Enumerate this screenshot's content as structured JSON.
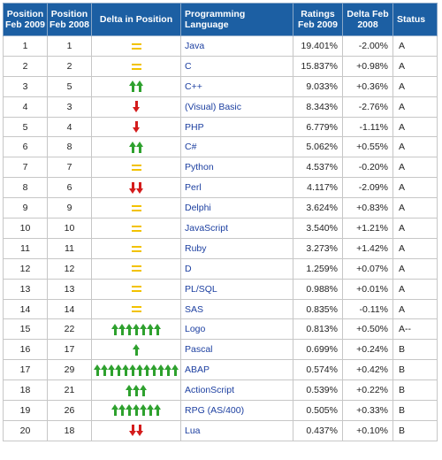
{
  "colors": {
    "header_bg": "#1c5fa3",
    "header_text": "#ffffff",
    "link": "#1c3fa0",
    "up_arrow": "#2ea12e",
    "down_arrow": "#d41c1c",
    "equal_sign": "#f2c200"
  },
  "header": {
    "pos_2009": "Position Feb 2009",
    "pos_2008": "Position Feb 2008",
    "delta_pos": "Delta in Position",
    "language": "Programming Language",
    "ratings": "Ratings Feb 2009",
    "delta_2008": "Delta Feb 2008",
    "status": "Status"
  },
  "rows": [
    {
      "p09": "1",
      "p08": "1",
      "delta": {
        "type": "equal",
        "count": 0
      },
      "lang": "Java",
      "rating": "19.401%",
      "change": "-2.00%",
      "status": "A"
    },
    {
      "p09": "2",
      "p08": "2",
      "delta": {
        "type": "equal",
        "count": 0
      },
      "lang": "C",
      "rating": "15.837%",
      "change": "+0.98%",
      "status": "A"
    },
    {
      "p09": "3",
      "p08": "5",
      "delta": {
        "type": "up",
        "count": 2
      },
      "lang": "C++",
      "rating": "9.033%",
      "change": "+0.36%",
      "status": "A"
    },
    {
      "p09": "4",
      "p08": "3",
      "delta": {
        "type": "down",
        "count": 1
      },
      "lang": "(Visual) Basic",
      "rating": "8.343%",
      "change": "-2.76%",
      "status": "A"
    },
    {
      "p09": "5",
      "p08": "4",
      "delta": {
        "type": "down",
        "count": 1
      },
      "lang": "PHP",
      "rating": "6.779%",
      "change": "-1.11%",
      "status": "A"
    },
    {
      "p09": "6",
      "p08": "8",
      "delta": {
        "type": "up",
        "count": 2
      },
      "lang": "C#",
      "rating": "5.062%",
      "change": "+0.55%",
      "status": "A"
    },
    {
      "p09": "7",
      "p08": "7",
      "delta": {
        "type": "equal",
        "count": 0
      },
      "lang": "Python",
      "rating": "4.537%",
      "change": "-0.20%",
      "status": "A"
    },
    {
      "p09": "8",
      "p08": "6",
      "delta": {
        "type": "down",
        "count": 2
      },
      "lang": "Perl",
      "rating": "4.117%",
      "change": "-2.09%",
      "status": "A"
    },
    {
      "p09": "9",
      "p08": "9",
      "delta": {
        "type": "equal",
        "count": 0
      },
      "lang": "Delphi",
      "rating": "3.624%",
      "change": "+0.83%",
      "status": "A"
    },
    {
      "p09": "10",
      "p08": "10",
      "delta": {
        "type": "equal",
        "count": 0
      },
      "lang": "JavaScript",
      "rating": "3.540%",
      "change": "+1.21%",
      "status": "A"
    },
    {
      "p09": "11",
      "p08": "11",
      "delta": {
        "type": "equal",
        "count": 0
      },
      "lang": "Ruby",
      "rating": "3.273%",
      "change": "+1.42%",
      "status": "A"
    },
    {
      "p09": "12",
      "p08": "12",
      "delta": {
        "type": "equal",
        "count": 0
      },
      "lang": "D",
      "rating": "1.259%",
      "change": "+0.07%",
      "status": "A"
    },
    {
      "p09": "13",
      "p08": "13",
      "delta": {
        "type": "equal",
        "count": 0
      },
      "lang": "PL/SQL",
      "rating": "0.988%",
      "change": "+0.01%",
      "status": "A"
    },
    {
      "p09": "14",
      "p08": "14",
      "delta": {
        "type": "equal",
        "count": 0
      },
      "lang": "SAS",
      "rating": "0.835%",
      "change": "-0.11%",
      "status": "A"
    },
    {
      "p09": "15",
      "p08": "22",
      "delta": {
        "type": "up",
        "count": 7
      },
      "lang": "Logo",
      "rating": "0.813%",
      "change": "+0.50%",
      "status": "A--"
    },
    {
      "p09": "16",
      "p08": "17",
      "delta": {
        "type": "up",
        "count": 1
      },
      "lang": "Pascal",
      "rating": "0.699%",
      "change": "+0.24%",
      "status": "B"
    },
    {
      "p09": "17",
      "p08": "29",
      "delta": {
        "type": "up",
        "count": 12
      },
      "lang": "ABAP",
      "rating": "0.574%",
      "change": "+0.42%",
      "status": "B"
    },
    {
      "p09": "18",
      "p08": "21",
      "delta": {
        "type": "up",
        "count": 3
      },
      "lang": "ActionScript",
      "rating": "0.539%",
      "change": "+0.22%",
      "status": "B"
    },
    {
      "p09": "19",
      "p08": "26",
      "delta": {
        "type": "up",
        "count": 7
      },
      "lang": "RPG (AS/400)",
      "rating": "0.505%",
      "change": "+0.33%",
      "status": "B"
    },
    {
      "p09": "20",
      "p08": "18",
      "delta": {
        "type": "down",
        "count": 2
      },
      "lang": "Lua",
      "rating": "0.437%",
      "change": "+0.10%",
      "status": "B"
    }
  ]
}
